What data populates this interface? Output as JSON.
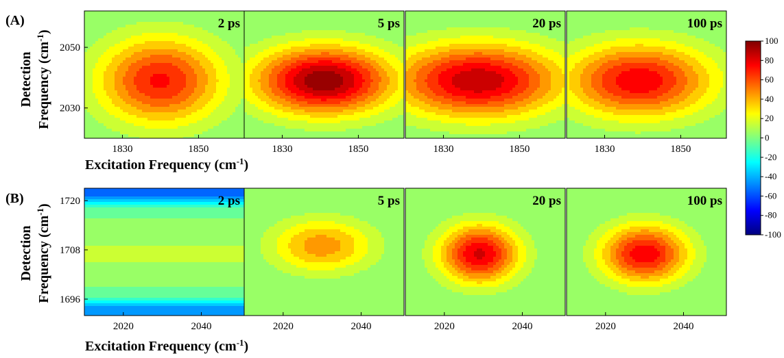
{
  "chart_data": {
    "type": "heatmap",
    "colorbar": {
      "min": -100,
      "max": 100,
      "ticks": [
        "100",
        "80",
        "60",
        "40",
        "20",
        "0",
        "-20",
        "-40",
        "-60",
        "-80",
        "-100"
      ]
    },
    "rows": [
      {
        "panel_label": "(A)",
        "xlabel": "Excitation Frequency (cm",
        "xlabel_sup": "-1",
        "xlabel_end": ")",
        "ylabel_line1": "Detection",
        "ylabel_line2": "Frequency (cm",
        "ylabel_sup": "-1",
        "ylabel_end": ")",
        "xrange": [
          1820,
          1862
        ],
        "yrange": [
          2020,
          2062
        ],
        "xticks": [
          {
            "v": 1830,
            "label": "1830"
          },
          {
            "v": 1850,
            "label": "1850"
          }
        ],
        "yticks": [
          {
            "v": 2030,
            "label": "2030"
          },
          {
            "v": 2050,
            "label": "2050"
          }
        ],
        "panels": [
          {
            "time": "2 ps",
            "cx": 1840,
            "cy": 2039,
            "sx": 16,
            "sy": 14,
            "amp": 72
          },
          {
            "time": "5 ps",
            "cx": 1841,
            "cy": 2039,
            "sx": 18,
            "sy": 11,
            "amp": 98
          },
          {
            "time": "20 ps",
            "cx": 1839,
            "cy": 2039,
            "sx": 22,
            "sy": 12,
            "amp": 88
          },
          {
            "time": "100 ps",
            "cx": 1839,
            "cy": 2039,
            "sx": 19,
            "sy": 12,
            "amp": 78
          }
        ]
      },
      {
        "panel_label": "(B)",
        "xlabel": "Excitation Frequency (cm",
        "xlabel_sup": "-1",
        "xlabel_end": ")",
        "ylabel_line1": "Detection",
        "ylabel_line2": "Frequency (cm",
        "ylabel_sup": "-1",
        "ylabel_end": ")",
        "xrange": [
          2010,
          2051
        ],
        "yrange": [
          1692,
          1723
        ],
        "xticks": [
          {
            "v": 2020,
            "label": "2020"
          },
          {
            "v": 2040,
            "label": "2040"
          }
        ],
        "yticks": [
          {
            "v": 1696,
            "label": "1696"
          },
          {
            "v": 1708,
            "label": "1708"
          },
          {
            "v": 1720,
            "label": "1720"
          }
        ],
        "panels": [
          {
            "time": "2 ps",
            "cx": 2030,
            "cy": 1706,
            "sx": 40,
            "sy": 4.5,
            "amp": 10
          },
          {
            "time": "5 ps",
            "cx": 2030,
            "cy": 1709,
            "sx": 13,
            "sy": 6.5,
            "amp": 46
          },
          {
            "time": "20 ps",
            "cx": 2029,
            "cy": 1707,
            "sx": 10,
            "sy": 7,
            "amp": 82
          },
          {
            "time": "100 ps",
            "cx": 2030,
            "cy": 1707,
            "sx": 11,
            "sy": 7,
            "amp": 78
          }
        ]
      }
    ]
  }
}
